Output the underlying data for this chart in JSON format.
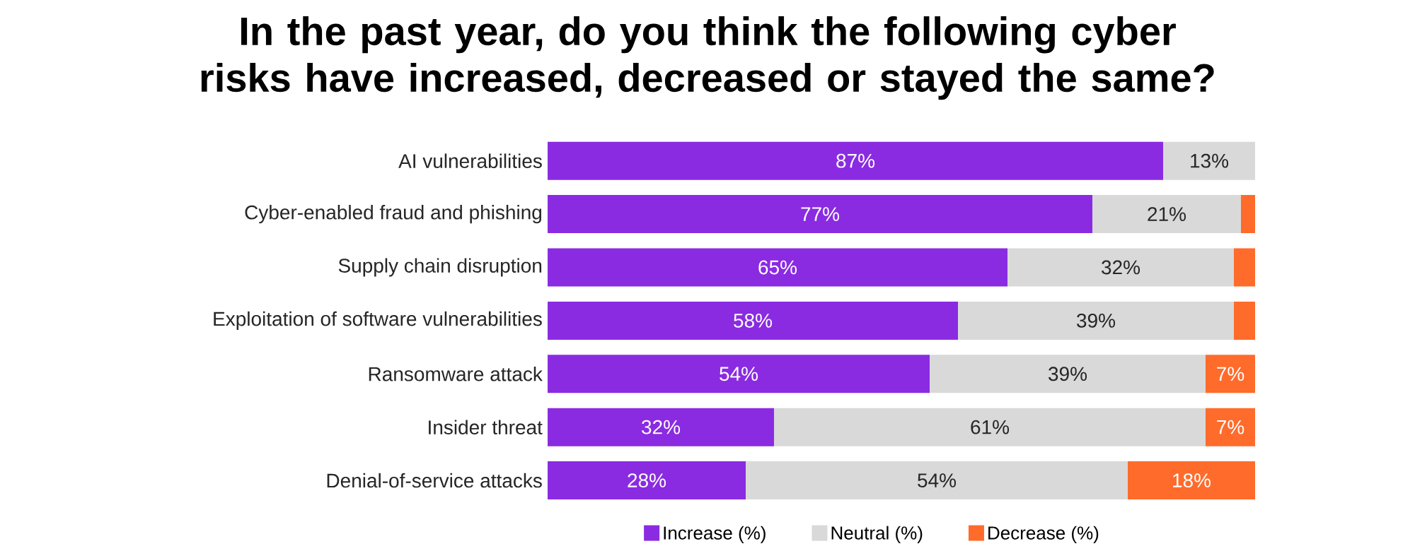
{
  "chart_data": {
    "type": "bar",
    "orientation": "horizontal",
    "stacked": true,
    "title": "In the past year, do you think the following cyber risks have increased, decreased or stayed the same?",
    "categories": [
      "AI vulnerabilities",
      "Cyber-enabled fraud and phishing",
      "Supply chain disruption",
      "Exploitation of software vulnerabilities",
      "Ransomware attack",
      "Insider threat",
      "Denial-of-service attacks"
    ],
    "xlim": [
      0,
      100
    ],
    "tick_labels": "y",
    "legend": "bottom",
    "series": [
      {
        "name": "Increase (%)",
        "color": "#8a2be2",
        "values": [
          87,
          77,
          65,
          58,
          54,
          32,
          28
        ],
        "value_labels": [
          "87%",
          "77%",
          "65%",
          "58%",
          "54%",
          "32%",
          "28%"
        ]
      },
      {
        "name": "Neutral (%)",
        "color": "#d9d9d9",
        "values": [
          13,
          21,
          32,
          39,
          39,
          61,
          54
        ],
        "value_labels": [
          "13%",
          "21%",
          "32%",
          "39%",
          "39%",
          "61%",
          "54%"
        ]
      },
      {
        "name": "Decrease (%)",
        "color": "#ff6b2b",
        "values": [
          null,
          2,
          3,
          3,
          7,
          7,
          18
        ],
        "value_labels": [
          null,
          null,
          null,
          null,
          "7%",
          "7%",
          "18%"
        ]
      }
    ]
  }
}
